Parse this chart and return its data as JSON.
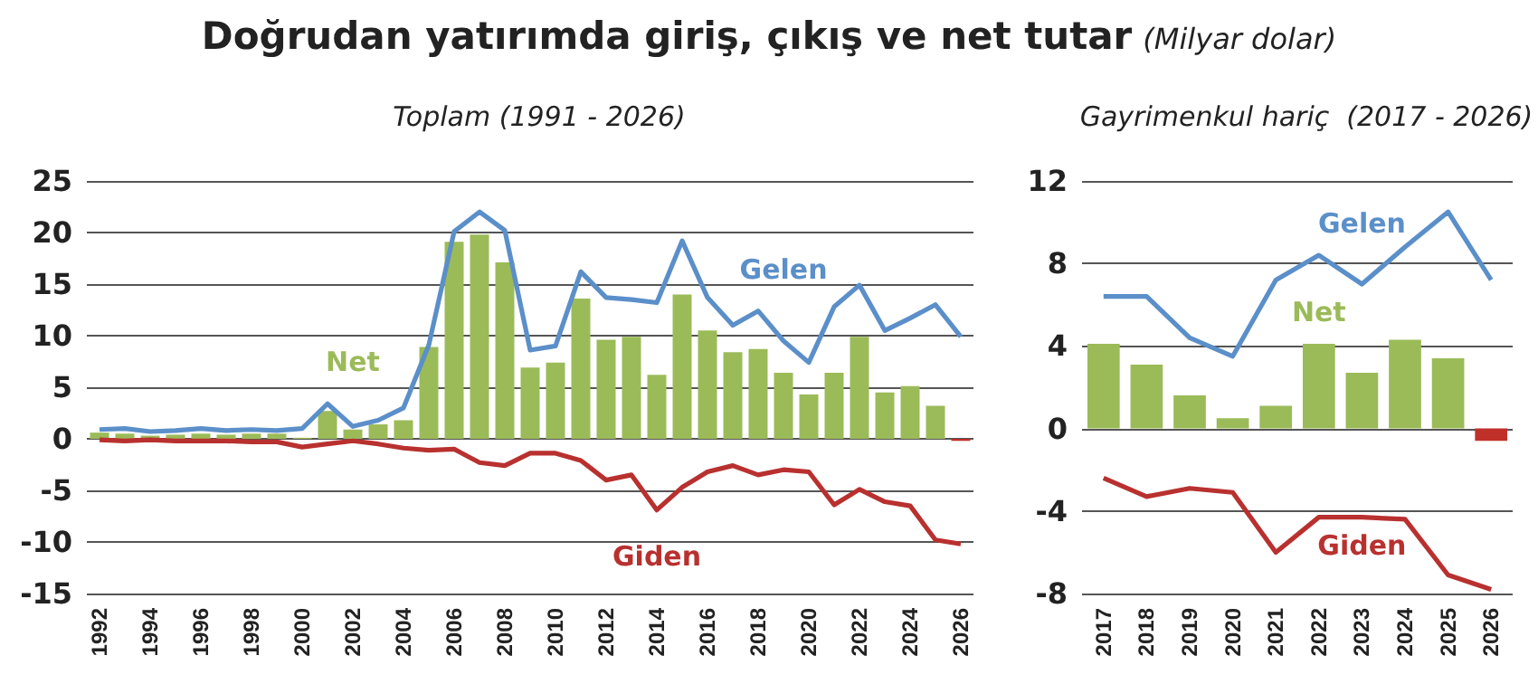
{
  "chart_data": [
    {
      "type": "bar",
      "title": "Doğrudan yatırımda giriş, çıkış ve net tutar",
      "annotations": [
        "(Milyar dolar)"
      ],
      "subtitle": "Toplam (1991 - 2026)",
      "categories": [
        "1992",
        null,
        "1994",
        null,
        "1996",
        null,
        "1998",
        null,
        "2000",
        null,
        "2002",
        null,
        "2004",
        null,
        "2006",
        null,
        "2008",
        null,
        "2010",
        null,
        "2012",
        null,
        "2014",
        null,
        "2016",
        null,
        "2018",
        null,
        "2020",
        null,
        "2022",
        null,
        "2024",
        null,
        "2026"
      ],
      "series": [
        {
          "name": "Gelen",
          "type": "line",
          "color": "#5b8fc9",
          "values": [
            0.9,
            1.0,
            0.7,
            0.8,
            1.0,
            0.8,
            0.9,
            0.8,
            1.0,
            3.4,
            1.2,
            1.8,
            3.0,
            9.1,
            20.1,
            22.0,
            20.2,
            8.6,
            9.0,
            16.2,
            13.7,
            13.5,
            13.2,
            19.2,
            13.7,
            11.0,
            12.4,
            9.5,
            7.4,
            12.8,
            14.9,
            10.5,
            11.7,
            13.0,
            9.9
          ]
        },
        {
          "name": "Net",
          "color": "#9bbb59",
          "colors": [
            "#9bbb59",
            "#9bbb59",
            "#9bbb59",
            "#9bbb59",
            "#9bbb59",
            "#9bbb59",
            "#9bbb59",
            "#9bbb59",
            "#9bbb59",
            "#9bbb59",
            "#9bbb59",
            "#9bbb59",
            "#9bbb59",
            "#9bbb59",
            "#9bbb59",
            "#9bbb59",
            "#9bbb59",
            "#9bbb59",
            "#9bbb59",
            "#9bbb59",
            "#9bbb59",
            "#9bbb59",
            "#9bbb59",
            "#9bbb59",
            "#9bbb59",
            "#9bbb59",
            "#9bbb59",
            "#9bbb59",
            "#9bbb59",
            "#9bbb59",
            "#9bbb59",
            "#9bbb59",
            "#9bbb59",
            "#9bbb59",
            "#c0302a"
          ],
          "values": [
            0.6,
            0.5,
            0.3,
            0.4,
            0.5,
            0.4,
            0.5,
            0.5,
            0.1,
            2.7,
            0.9,
            1.4,
            1.8,
            8.9,
            19.1,
            19.8,
            17.1,
            6.9,
            7.4,
            13.6,
            9.6,
            9.9,
            6.2,
            14.0,
            10.5,
            8.4,
            8.7,
            6.4,
            4.3,
            6.4,
            9.9,
            4.5,
            5.1,
            3.2,
            -0.2
          ]
        },
        {
          "name": "Giden",
          "type": "line",
          "color": "#b8312f",
          "values": [
            -0.1,
            -0.2,
            -0.1,
            -0.2,
            -0.2,
            -0.2,
            -0.3,
            -0.3,
            -0.8,
            -0.5,
            -0.2,
            -0.5,
            -0.9,
            -1.1,
            -1.0,
            -2.3,
            -2.6,
            -1.4,
            -1.4,
            -2.1,
            -4.0,
            -3.5,
            -6.9,
            -4.7,
            -3.2,
            -2.6,
            -3.5,
            -3.0,
            -3.2,
            -6.4,
            -4.9,
            -6.1,
            -6.5,
            -9.8,
            -10.2
          ]
        }
      ],
      "ylim": [
        -15,
        25
      ],
      "yticks": [
        -15,
        -10,
        -5,
        0,
        5,
        10,
        15,
        20,
        25
      ],
      "grid": "y",
      "marker": "none",
      "line_style": "solid",
      "legend": false
    },
    {
      "type": "bar",
      "subtitle": "Gayrimenkul hariç  (2017 - 2026)",
      "categories": [
        "2017",
        "2018",
        "2019",
        "2020",
        "2021",
        "2022",
        "2023",
        "2024",
        "2025",
        "2026"
      ],
      "series": [
        {
          "name": "Gelen",
          "type": "line",
          "color": "#5b8fc9",
          "values": [
            6.4,
            6.4,
            4.4,
            3.5,
            7.2,
            8.4,
            7.0,
            8.8,
            10.5,
            7.2
          ]
        },
        {
          "name": "Net",
          "color": "#9bbb59",
          "colors": [
            "#9bbb59",
            "#9bbb59",
            "#9bbb59",
            "#9bbb59",
            "#9bbb59",
            "#9bbb59",
            "#9bbb59",
            "#9bbb59",
            "#9bbb59",
            "#c0302a"
          ],
          "values": [
            4.1,
            3.1,
            1.6,
            0.5,
            1.1,
            4.1,
            2.7,
            4.3,
            3.4,
            -0.6
          ]
        },
        {
          "name": "Giden",
          "type": "line",
          "color": "#b8312f",
          "values": [
            -2.4,
            -3.3,
            -2.9,
            -3.1,
            -6.0,
            -4.3,
            -4.3,
            -4.4,
            -7.1,
            -7.8
          ]
        }
      ],
      "ylim": [
        -8,
        12
      ],
      "yticks": [
        -8,
        -4,
        0,
        4,
        8,
        12
      ],
      "grid": "y",
      "marker": "none",
      "line_style": "solid",
      "legend": false
    }
  ]
}
